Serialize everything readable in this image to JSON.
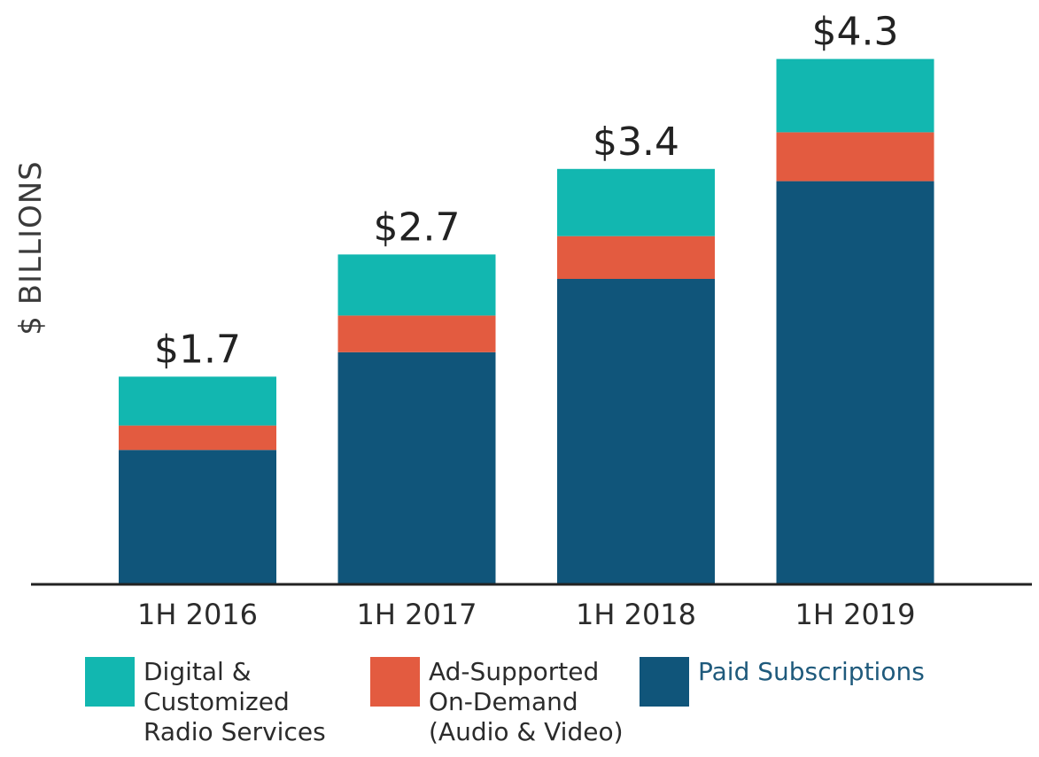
{
  "chart_data": {
    "type": "bar",
    "stacked": true,
    "ylabel": "$ BILLIONS",
    "categories": [
      "1H 2016",
      "1H 2017",
      "1H 2018",
      "1H 2019"
    ],
    "totals": [
      "$1.7",
      "$2.7",
      "$3.4",
      "$4.3"
    ],
    "series": [
      {
        "name": "Paid Subscriptions",
        "color": "#10557a",
        "values": [
          1.1,
          1.9,
          2.5,
          3.3
        ]
      },
      {
        "name": "Ad-Supported On-Demand (Audio & Video)",
        "color": "#e35b40",
        "values": [
          0.2,
          0.3,
          0.35,
          0.4
        ]
      },
      {
        "name": "Digital & Customized Radio Services",
        "color": "#12b7b0",
        "values": [
          0.4,
          0.5,
          0.55,
          0.6
        ]
      }
    ]
  },
  "legend": [
    {
      "label": "Digital &\nCustomized\nRadio Services",
      "color": "#12b7b0"
    },
    {
      "label": "Ad-Supported\nOn-Demand\n(Audio & Video)",
      "color": "#e35b40"
    },
    {
      "label": "Paid Subscriptions",
      "color": "#10557a"
    }
  ]
}
